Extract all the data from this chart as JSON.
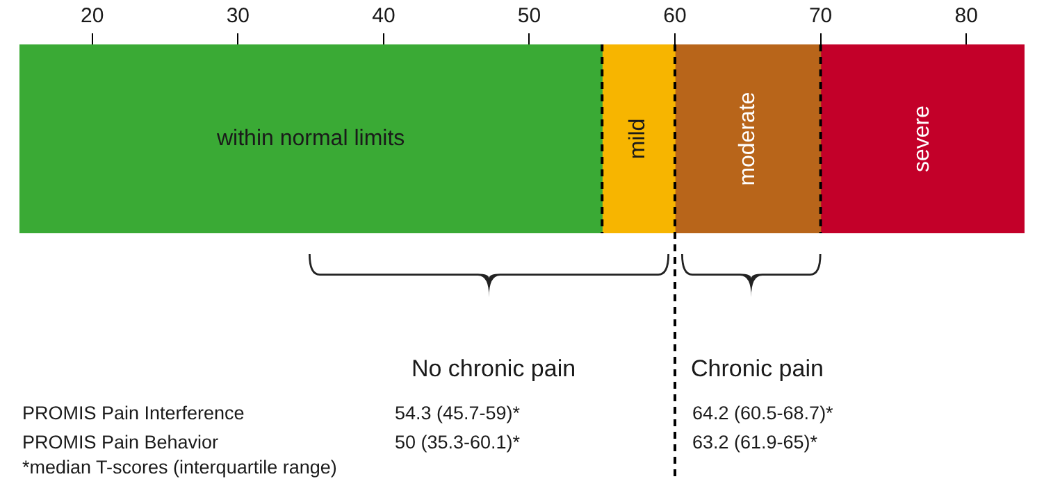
{
  "chart_data": {
    "type": "bar",
    "orientation": "horizontal",
    "categories": [
      null
    ],
    "xlim": [
      15,
      84
    ],
    "xticks": [
      20,
      30,
      40,
      50,
      60,
      70,
      80
    ],
    "series": [
      {
        "name": "within normal limits",
        "color": "#3aaa35",
        "base": [
          15
        ],
        "values": [
          40
        ]
      },
      {
        "name": "mild",
        "color": "#f7b500",
        "base": [
          55
        ],
        "values": [
          5
        ]
      },
      {
        "name": "moderate",
        "color": "#b8651a",
        "base": [
          60
        ],
        "values": [
          10
        ]
      },
      {
        "name": "severe",
        "color": "#c30029",
        "base": [
          70
        ],
        "values": [
          14
        ]
      }
    ],
    "ref_lines": [
      {
        "axis": "x",
        "value": 55,
        "line_style": "dashed",
        "color": "#000000"
      },
      {
        "axis": "x",
        "value": 60,
        "line_style": "dashed",
        "color": "#000000"
      },
      {
        "axis": "x",
        "value": 70,
        "line_style": "dashed",
        "color": "#000000"
      }
    ],
    "annotations": [
      "No chronic pain",
      "Chronic pain",
      "PROMIS Pain Interference",
      "54.3 (45.7-59)*",
      "64.2 (60.5-68.7)*",
      "PROMIS Pain Behavior",
      "50 (35.3-60.1)*",
      "63.2 (61.9-65)*",
      "*median T-scores (interquartile range)"
    ]
  }
}
